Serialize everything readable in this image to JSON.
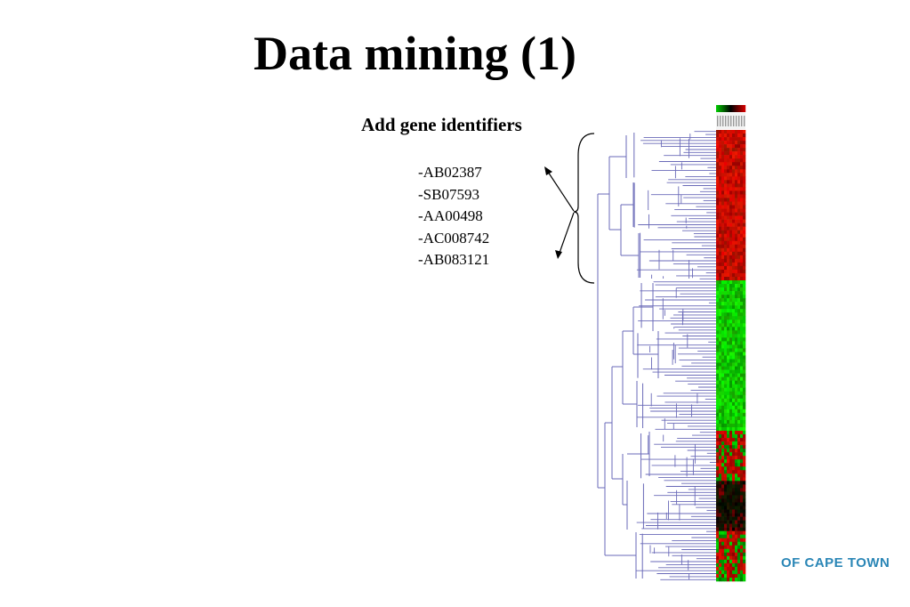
{
  "slide": {
    "title": "Data mining (1)",
    "subtitle": "Add gene identifiers",
    "gene_ids": [
      "-AB02387",
      "-SB07593",
      "-AA00498",
      "-AC008742",
      "-AB083121"
    ],
    "footer_logo_text": "OF CAPE TOWN"
  },
  "heatmap": {
    "color_scale": [
      "#00c000",
      "#000000",
      "#d00000"
    ],
    "dendrogram_color": "#6a6ab8",
    "blocks": [
      {
        "tone": "red"
      },
      {
        "tone": "red"
      },
      {
        "tone": "red"
      },
      {
        "tone": "green"
      },
      {
        "tone": "green"
      },
      {
        "tone": "green"
      },
      {
        "tone": "mixed-red"
      },
      {
        "tone": "dark"
      },
      {
        "tone": "mixed-red"
      }
    ]
  }
}
